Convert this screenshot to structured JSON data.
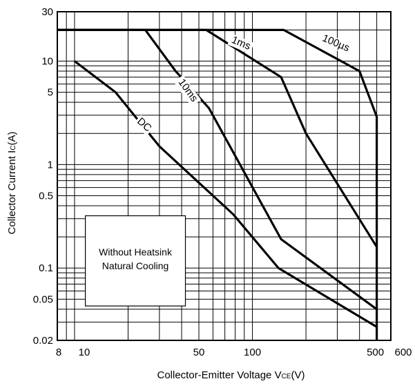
{
  "chart_data": {
    "type": "line",
    "title": "",
    "xlabel": "Collector-Emitter Voltage V",
    "xlabel_sub": "CE",
    "xlabel_unit": "(V)",
    "ylabel": "Collector Current I",
    "ylabel_sub": "C",
    "ylabel_unit": "(A)",
    "x_scale": "log",
    "y_scale": "log",
    "xlim": [
      8,
      600
    ],
    "ylim": [
      0.02,
      30
    ],
    "grid": true,
    "x_tick_labels": [
      {
        "value": 8,
        "label": "8"
      },
      {
        "value": 10,
        "label": "10"
      },
      {
        "value": 50,
        "label": "50"
      },
      {
        "value": 100,
        "label": "100"
      },
      {
        "value": 500,
        "label": "500"
      },
      {
        "value": 600,
        "label": "600"
      }
    ],
    "y_tick_labels": [
      {
        "value": 30,
        "label": "30"
      },
      {
        "value": 10,
        "label": "10"
      },
      {
        "value": 5,
        "label": "5"
      },
      {
        "value": 1,
        "label": "1"
      },
      {
        "value": 0.5,
        "label": "0.5"
      },
      {
        "value": 0.1,
        "label": "0.1"
      },
      {
        "value": 0.05,
        "label": "0.05"
      },
      {
        "value": 0.02,
        "label": "0.02"
      }
    ],
    "series": [
      {
        "name": "100µs",
        "points": [
          [
            8,
            20
          ],
          [
            150,
            20
          ],
          [
            400,
            8
          ],
          [
            500,
            2.9
          ],
          [
            500,
            0.02
          ]
        ]
      },
      {
        "name": "1ms",
        "points": [
          [
            8,
            20
          ],
          [
            55,
            20
          ],
          [
            145,
            7
          ],
          [
            200,
            2
          ],
          [
            500,
            0.16
          ]
        ]
      },
      {
        "name": "10ms",
        "points": [
          [
            8,
            20
          ],
          [
            25,
            20
          ],
          [
            37,
            8
          ],
          [
            57,
            3.5
          ],
          [
            145,
            0.19
          ],
          [
            500,
            0.04
          ]
        ]
      },
      {
        "name": "DC",
        "points": [
          [
            10,
            10
          ],
          [
            17,
            5
          ],
          [
            30,
            1.5
          ],
          [
            78,
            0.33
          ],
          [
            140,
            0.1
          ],
          [
            500,
            0.027
          ]
        ]
      }
    ],
    "annotations": [
      "Without Heatsink",
      "Natural Cooling"
    ]
  }
}
